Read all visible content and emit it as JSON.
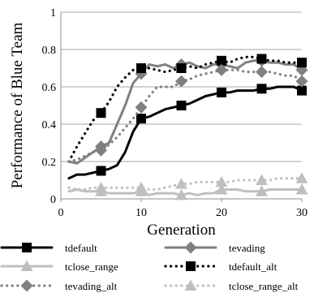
{
  "chart_data": {
    "type": "line",
    "title": "",
    "xlabel": "Generation",
    "ylabel": "Performance of Blue Team",
    "xlim": [
      0,
      30
    ],
    "ylim": [
      0,
      1
    ],
    "xticks": [
      0,
      10,
      20,
      30
    ],
    "yticks": [
      0,
      0.2,
      0.4,
      0.6,
      0.8,
      1
    ],
    "ytick_labels": [
      "0",
      "0.2",
      "0.4",
      "0.6",
      "0.8",
      "1"
    ],
    "grid": "horizontal",
    "legend_position": "bottom",
    "x": [
      1,
      2,
      3,
      4,
      5,
      6,
      7,
      8,
      9,
      10,
      11,
      12,
      13,
      14,
      15,
      16,
      17,
      18,
      19,
      20,
      21,
      22,
      23,
      24,
      25,
      26,
      27,
      28,
      29,
      30
    ],
    "series": [
      {
        "name": "tdefault",
        "color": "#000000",
        "style": "solid",
        "marker": "square",
        "values": [
          0.11,
          0.13,
          0.13,
          0.14,
          0.15,
          0.16,
          0.18,
          0.25,
          0.36,
          0.43,
          0.44,
          0.46,
          0.48,
          0.49,
          0.5,
          0.51,
          0.53,
          0.55,
          0.56,
          0.57,
          0.57,
          0.58,
          0.58,
          0.58,
          0.59,
          0.59,
          0.6,
          0.6,
          0.6,
          0.58
        ]
      },
      {
        "name": "tevading",
        "color": "#808080",
        "style": "solid",
        "marker": "diamond",
        "values": [
          0.2,
          0.19,
          0.22,
          0.25,
          0.28,
          0.3,
          0.4,
          0.5,
          0.62,
          0.67,
          0.72,
          0.71,
          0.72,
          0.7,
          0.72,
          0.73,
          0.71,
          0.7,
          0.72,
          0.72,
          0.71,
          0.7,
          0.73,
          0.74,
          0.74,
          0.73,
          0.73,
          0.72,
          0.72,
          0.69
        ]
      },
      {
        "name": "tclose_range",
        "color": "#bfbfbf",
        "style": "solid",
        "marker": "triangle",
        "values": [
          0.04,
          0.05,
          0.04,
          0.04,
          0.04,
          0.03,
          0.03,
          0.03,
          0.03,
          0.04,
          0.02,
          0.03,
          0.03,
          0.03,
          0.02,
          0.03,
          0.02,
          0.03,
          0.03,
          0.05,
          0.05,
          0.05,
          0.04,
          0.04,
          0.04,
          0.05,
          0.05,
          0.05,
          0.05,
          0.05
        ]
      },
      {
        "name": "tdefault_alt",
        "color": "#000000",
        "style": "dotted",
        "marker": "square",
        "values": [
          0.2,
          0.28,
          0.35,
          0.42,
          0.46,
          0.52,
          0.6,
          0.65,
          0.69,
          0.7,
          0.7,
          0.69,
          0.68,
          0.69,
          0.7,
          0.71,
          0.7,
          0.72,
          0.73,
          0.74,
          0.73,
          0.75,
          0.76,
          0.76,
          0.75,
          0.74,
          0.74,
          0.73,
          0.73,
          0.73
        ]
      },
      {
        "name": "tevading_alt",
        "color": "#808080",
        "style": "dotted",
        "marker": "diamond",
        "values": [
          0.2,
          0.21,
          0.23,
          0.25,
          0.26,
          0.29,
          0.33,
          0.38,
          0.43,
          0.49,
          0.55,
          0.6,
          0.6,
          0.6,
          0.63,
          0.64,
          0.66,
          0.67,
          0.68,
          0.69,
          0.69,
          0.69,
          0.68,
          0.68,
          0.68,
          0.68,
          0.67,
          0.66,
          0.66,
          0.63
        ]
      },
      {
        "name": "tclose_range_alt",
        "color": "#bfbfbf",
        "style": "dotted",
        "marker": "triangle",
        "values": [
          0.06,
          0.05,
          0.05,
          0.06,
          0.06,
          0.06,
          0.06,
          0.06,
          0.06,
          0.06,
          0.05,
          0.05,
          0.06,
          0.07,
          0.08,
          0.08,
          0.09,
          0.09,
          0.09,
          0.09,
          0.09,
          0.1,
          0.1,
          0.1,
          0.1,
          0.1,
          0.11,
          0.11,
          0.11,
          0.11
        ]
      }
    ]
  }
}
